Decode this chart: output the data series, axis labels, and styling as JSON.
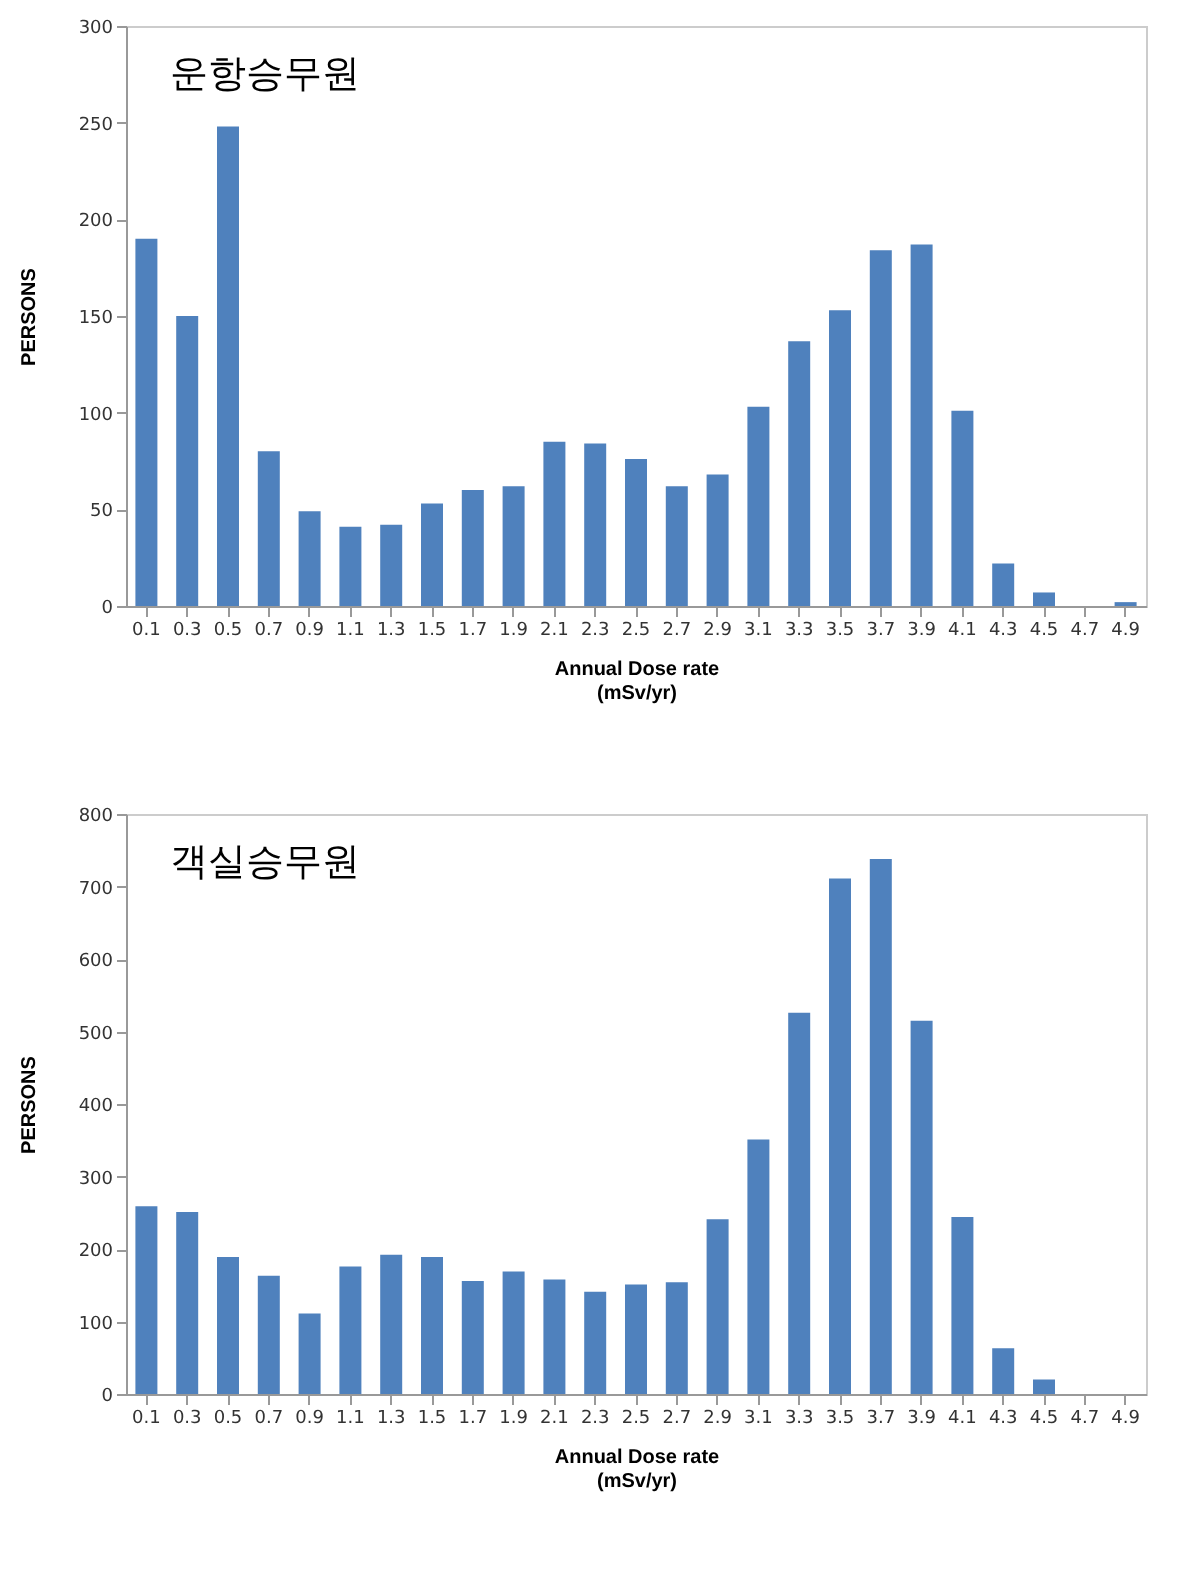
{
  "chart_data": [
    {
      "type": "bar",
      "title": "운항승무원",
      "xlabel": "Annual Dose rate\n(mSv/yr)",
      "ylabel": "PERSONS",
      "categories": [
        "0.1",
        "0.3",
        "0.5",
        "0.7",
        "0.9",
        "1.1",
        "1.3",
        "1.5",
        "1.7",
        "1.9",
        "2.1",
        "2.3",
        "2.5",
        "2.7",
        "2.9",
        "3.1",
        "3.3",
        "3.5",
        "3.7",
        "3.9",
        "4.1",
        "4.3",
        "4.5",
        "4.7",
        "4.9"
      ],
      "values": [
        190,
        150,
        248,
        80,
        49,
        41,
        42,
        53,
        60,
        62,
        85,
        84,
        76,
        62,
        68,
        103,
        137,
        153,
        184,
        187,
        101,
        22,
        7,
        0,
        2
      ],
      "color": "#4f81bd",
      "ylim": [
        0,
        300
      ],
      "yticks": [
        0,
        50,
        100,
        150,
        200,
        250,
        300
      ],
      "grid": false
    },
    {
      "type": "bar",
      "title": "객실승무원",
      "xlabel": "Annual Dose rate\n(mSv/yr)",
      "ylabel": "PERSONS",
      "categories": [
        "0.1",
        "0.3",
        "0.5",
        "0.7",
        "0.9",
        "1.1",
        "1.3",
        "1.5",
        "1.7",
        "1.9",
        "2.1",
        "2.3",
        "2.5",
        "2.7",
        "2.9",
        "3.1",
        "3.3",
        "3.5",
        "3.7",
        "3.9",
        "4.1",
        "4.3",
        "4.5",
        "4.7",
        "4.9"
      ],
      "values": [
        259,
        251,
        189,
        163,
        111,
        176,
        192,
        189,
        156,
        169,
        158,
        141,
        151,
        154,
        241,
        351,
        526,
        711,
        738,
        515,
        244,
        63,
        20,
        0,
        0
      ],
      "color": "#4f81bd",
      "ylim": [
        0,
        800
      ],
      "yticks": [
        0,
        100,
        200,
        300,
        400,
        500,
        600,
        700,
        800
      ],
      "grid": false
    }
  ]
}
